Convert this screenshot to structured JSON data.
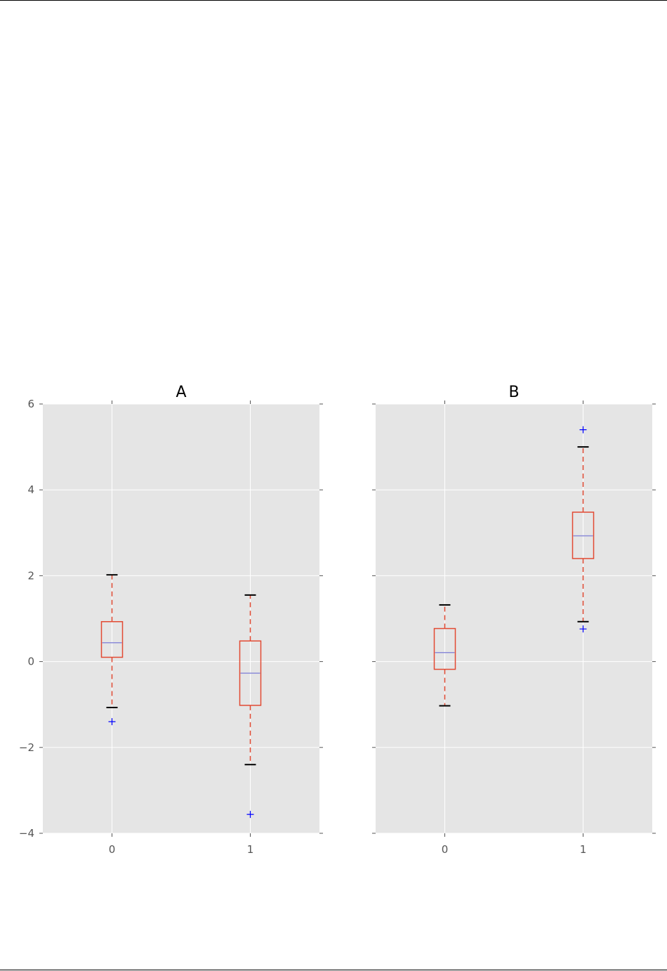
{
  "chart_data": {
    "type": "box",
    "sharey": true,
    "ylim": [
      -4,
      6
    ],
    "yticks": [
      -4,
      -2,
      0,
      2,
      4,
      6
    ],
    "ytick_labels": [
      "−4",
      "−2",
      "0",
      "2",
      "4",
      "6"
    ],
    "grid": true,
    "colors": {
      "plot_bg": "#e5e5e5",
      "grid": "#ffffff",
      "box": "#e24a33",
      "whisker": "#e24a33",
      "cap": "#000000",
      "median": "#8c8cd8",
      "flier": "#0000ff",
      "tick_label": "#555555",
      "title": "#000000"
    },
    "panels": [
      {
        "title": "A",
        "categories": [
          "0",
          "1"
        ],
        "boxes": [
          {
            "label": "0",
            "whislo": -1.07,
            "q1": 0.1,
            "median": 0.44,
            "q3": 0.93,
            "whishi": 2.02,
            "fliers": [
              -1.4
            ]
          },
          {
            "label": "1",
            "whislo": -2.4,
            "q1": -1.02,
            "median": -0.27,
            "q3": 0.48,
            "whishi": 1.55,
            "fliers": [
              -3.56
            ]
          }
        ]
      },
      {
        "title": "B",
        "categories": [
          "0",
          "1"
        ],
        "boxes": [
          {
            "label": "0",
            "whislo": -1.03,
            "q1": -0.18,
            "median": 0.21,
            "q3": 0.77,
            "whishi": 1.32,
            "fliers": []
          },
          {
            "label": "1",
            "whislo": 0.93,
            "q1": 2.4,
            "median": 2.93,
            "q3": 3.48,
            "whishi": 5.0,
            "fliers": [
              5.4,
              0.76
            ]
          }
        ]
      }
    ]
  }
}
